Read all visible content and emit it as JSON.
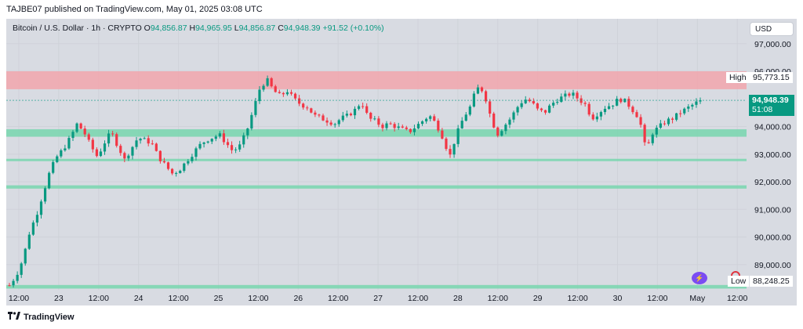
{
  "header": {
    "text": "TAJBE07 published on TradingView.com, May 01, 2025 03:08 UTC"
  },
  "symbol": {
    "name": "Bitcoin / U.S. Dollar · 1h · CRYPTO",
    "o_label": "O",
    "o": "94,856.87",
    "h_label": "H",
    "h": "94,965.95",
    "l_label": "L",
    "l": "94,856.87",
    "c_label": "C",
    "c": "94,948.39",
    "change": "+91.52 (+0.10%)"
  },
  "currency": "USD",
  "high_label": "High",
  "high_value": "95,773.15",
  "low_label": "Low",
  "low_value": "88,248.25",
  "last_price": "94,948.39",
  "countdown": "51:08",
  "footer": {
    "brand": "TradingView"
  },
  "colors": {
    "up": "#089981",
    "down": "#f23645",
    "supply": "#f2a6ad",
    "demand": "#78d6ae",
    "background": "#d8dbe2"
  },
  "icons": [
    "alert-icon",
    "tradingview-logo-icon"
  ],
  "chart_data": {
    "type": "candlestick",
    "title": "",
    "ylim": [
      88000,
      97500
    ],
    "yticks": [
      97000,
      96000,
      94000,
      93000,
      92000,
      91000,
      90000,
      89000
    ],
    "ytick_labels": [
      "97,000.00",
      "96,000.00",
      "94,000.00",
      "93,000.00",
      "92,000.00",
      "91,000.00",
      "90,000.00",
      "89,000.00"
    ],
    "xticks": [
      "12:00",
      "23",
      "12:00",
      "24",
      "12:00",
      "25",
      "12:00",
      "26",
      "12:00",
      "27",
      "12:00",
      "28",
      "12:00",
      "29",
      "12:00",
      "30",
      "12:00",
      "May",
      "12:00"
    ],
    "zones": [
      {
        "kind": "supply",
        "from": 95350,
        "to": 96000
      },
      {
        "kind": "demand",
        "from": 93630,
        "to": 93900
      },
      {
        "kind": "demand",
        "from": 92780,
        "to": 92830
      },
      {
        "kind": "demand",
        "from": 91750,
        "to": 91870
      },
      {
        "kind": "demand",
        "from": 88130,
        "to": 88260
      }
    ],
    "close_path": [
      88250,
      88600,
      89200,
      90200,
      90800,
      91600,
      92400,
      92900,
      93200,
      93600,
      94100,
      93800,
      93300,
      92900,
      93400,
      93800,
      93300,
      92800,
      93200,
      93600,
      93500,
      93400,
      92900,
      92600,
      92300,
      92400,
      92700,
      93000,
      93300,
      93500,
      93600,
      93700,
      93400,
      93100,
      93300,
      93800,
      94600,
      95400,
      95700,
      95300,
      95100,
      95300,
      95000,
      94800,
      94700,
      94400,
      94300,
      94200,
      94100,
      94300,
      94400,
      94600,
      94900,
      94300,
      94200,
      94000,
      94100,
      94000,
      93900,
      93800,
      94000,
      94200,
      94400,
      94100,
      93600,
      92900,
      93700,
      94300,
      94700,
      95400,
      95300,
      94400,
      93700,
      94000,
      94300,
      94700,
      95000,
      94900,
      94600,
      94500,
      94800,
      95000,
      95100,
      95200,
      95000,
      94800,
      94300,
      94500,
      94700,
      94800,
      95000,
      94900,
      94600,
      94300,
      93100,
      93800,
      94000,
      94200,
      94300,
      94500,
      94650,
      94800,
      94948.39
    ]
  }
}
